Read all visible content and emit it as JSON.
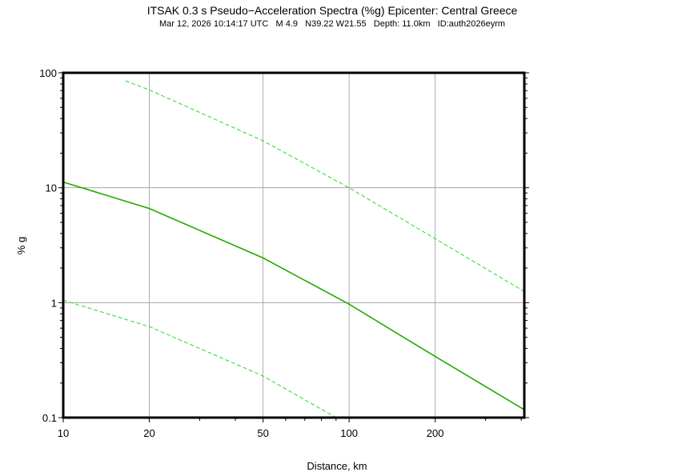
{
  "chart_data": {
    "type": "line",
    "title": "ITSAK 0.3 s Pseudo−Acceleration Spectra (%g) Epicenter: Central Greece",
    "subtitle": "Mar 12, 2026 10:14:17 UTC   M 4.9   N39.22 W21.55   Depth: 11.0km   ID:auth2026eyrm",
    "xlabel": "Distance, km",
    "ylabel": "% g",
    "xscale": "log",
    "yscale": "log",
    "xlim": [
      10,
      410
    ],
    "ylim": [
      0.1,
      100
    ],
    "grid": true,
    "xticks": [
      "10",
      "20",
      "50",
      "100",
      "200"
    ],
    "xtick_values": [
      10,
      20,
      50,
      100,
      200
    ],
    "yticks": [
      "0.1",
      "1",
      "10",
      "100"
    ],
    "ytick_values": [
      0.1,
      1,
      10,
      100
    ],
    "series": [
      {
        "style": "solid",
        "color": "#22aa00",
        "x": [
          10,
          20,
          50,
          100,
          200,
          410
        ],
        "y": [
          11.2,
          6.6,
          2.45,
          0.97,
          0.34,
          0.117
        ]
      },
      {
        "style": "dashed",
        "color": "#22dd22",
        "x": [
          16.5,
          20,
          50,
          100,
          200,
          410
        ],
        "y": [
          85,
          71,
          25.6,
          10,
          3.6,
          1.25
        ]
      },
      {
        "style": "dashed",
        "color": "#22dd22",
        "x": [
          10,
          20,
          50,
          90
        ],
        "y": [
          1.05,
          0.62,
          0.23,
          0.1
        ]
      }
    ]
  }
}
